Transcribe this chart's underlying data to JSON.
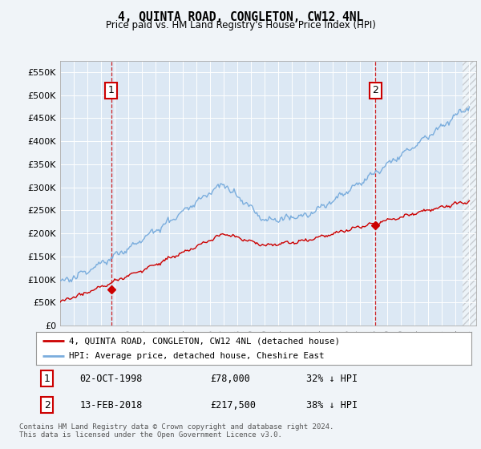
{
  "title": "4, QUINTA ROAD, CONGLETON, CW12 4NL",
  "subtitle": "Price paid vs. HM Land Registry's House Price Index (HPI)",
  "hpi_color": "#7aaddd",
  "price_color": "#cc0000",
  "background_color": "#f0f4f8",
  "plot_bg_color": "#dce8f4",
  "ylim": [
    0,
    575000
  ],
  "yticks": [
    0,
    50000,
    100000,
    150000,
    200000,
    250000,
    300000,
    350000,
    400000,
    450000,
    500000,
    550000
  ],
  "xlim_start": 1995.0,
  "xlim_end": 2025.5,
  "sale1_x": 1998.75,
  "sale1_y": 78000,
  "sale1_label": "1",
  "sale1_date": "02-OCT-1998",
  "sale1_price": "£78,000",
  "sale1_hpi": "32% ↓ HPI",
  "sale2_x": 2018.1,
  "sale2_y": 217500,
  "sale2_label": "2",
  "sale2_date": "13-FEB-2018",
  "sale2_price": "£217,500",
  "sale2_hpi": "38% ↓ HPI",
  "legend_line1": "4, QUINTA ROAD, CONGLETON, CW12 4NL (detached house)",
  "legend_line2": "HPI: Average price, detached house, Cheshire East",
  "footer": "Contains HM Land Registry data © Crown copyright and database right 2024.\nThis data is licensed under the Open Government Licence v3.0.",
  "xticks": [
    1995,
    1996,
    1997,
    1998,
    1999,
    2000,
    2001,
    2002,
    2003,
    2004,
    2005,
    2006,
    2007,
    2008,
    2009,
    2010,
    2011,
    2012,
    2013,
    2014,
    2015,
    2016,
    2017,
    2018,
    2019,
    2020,
    2021,
    2022,
    2023,
    2024,
    2025
  ]
}
